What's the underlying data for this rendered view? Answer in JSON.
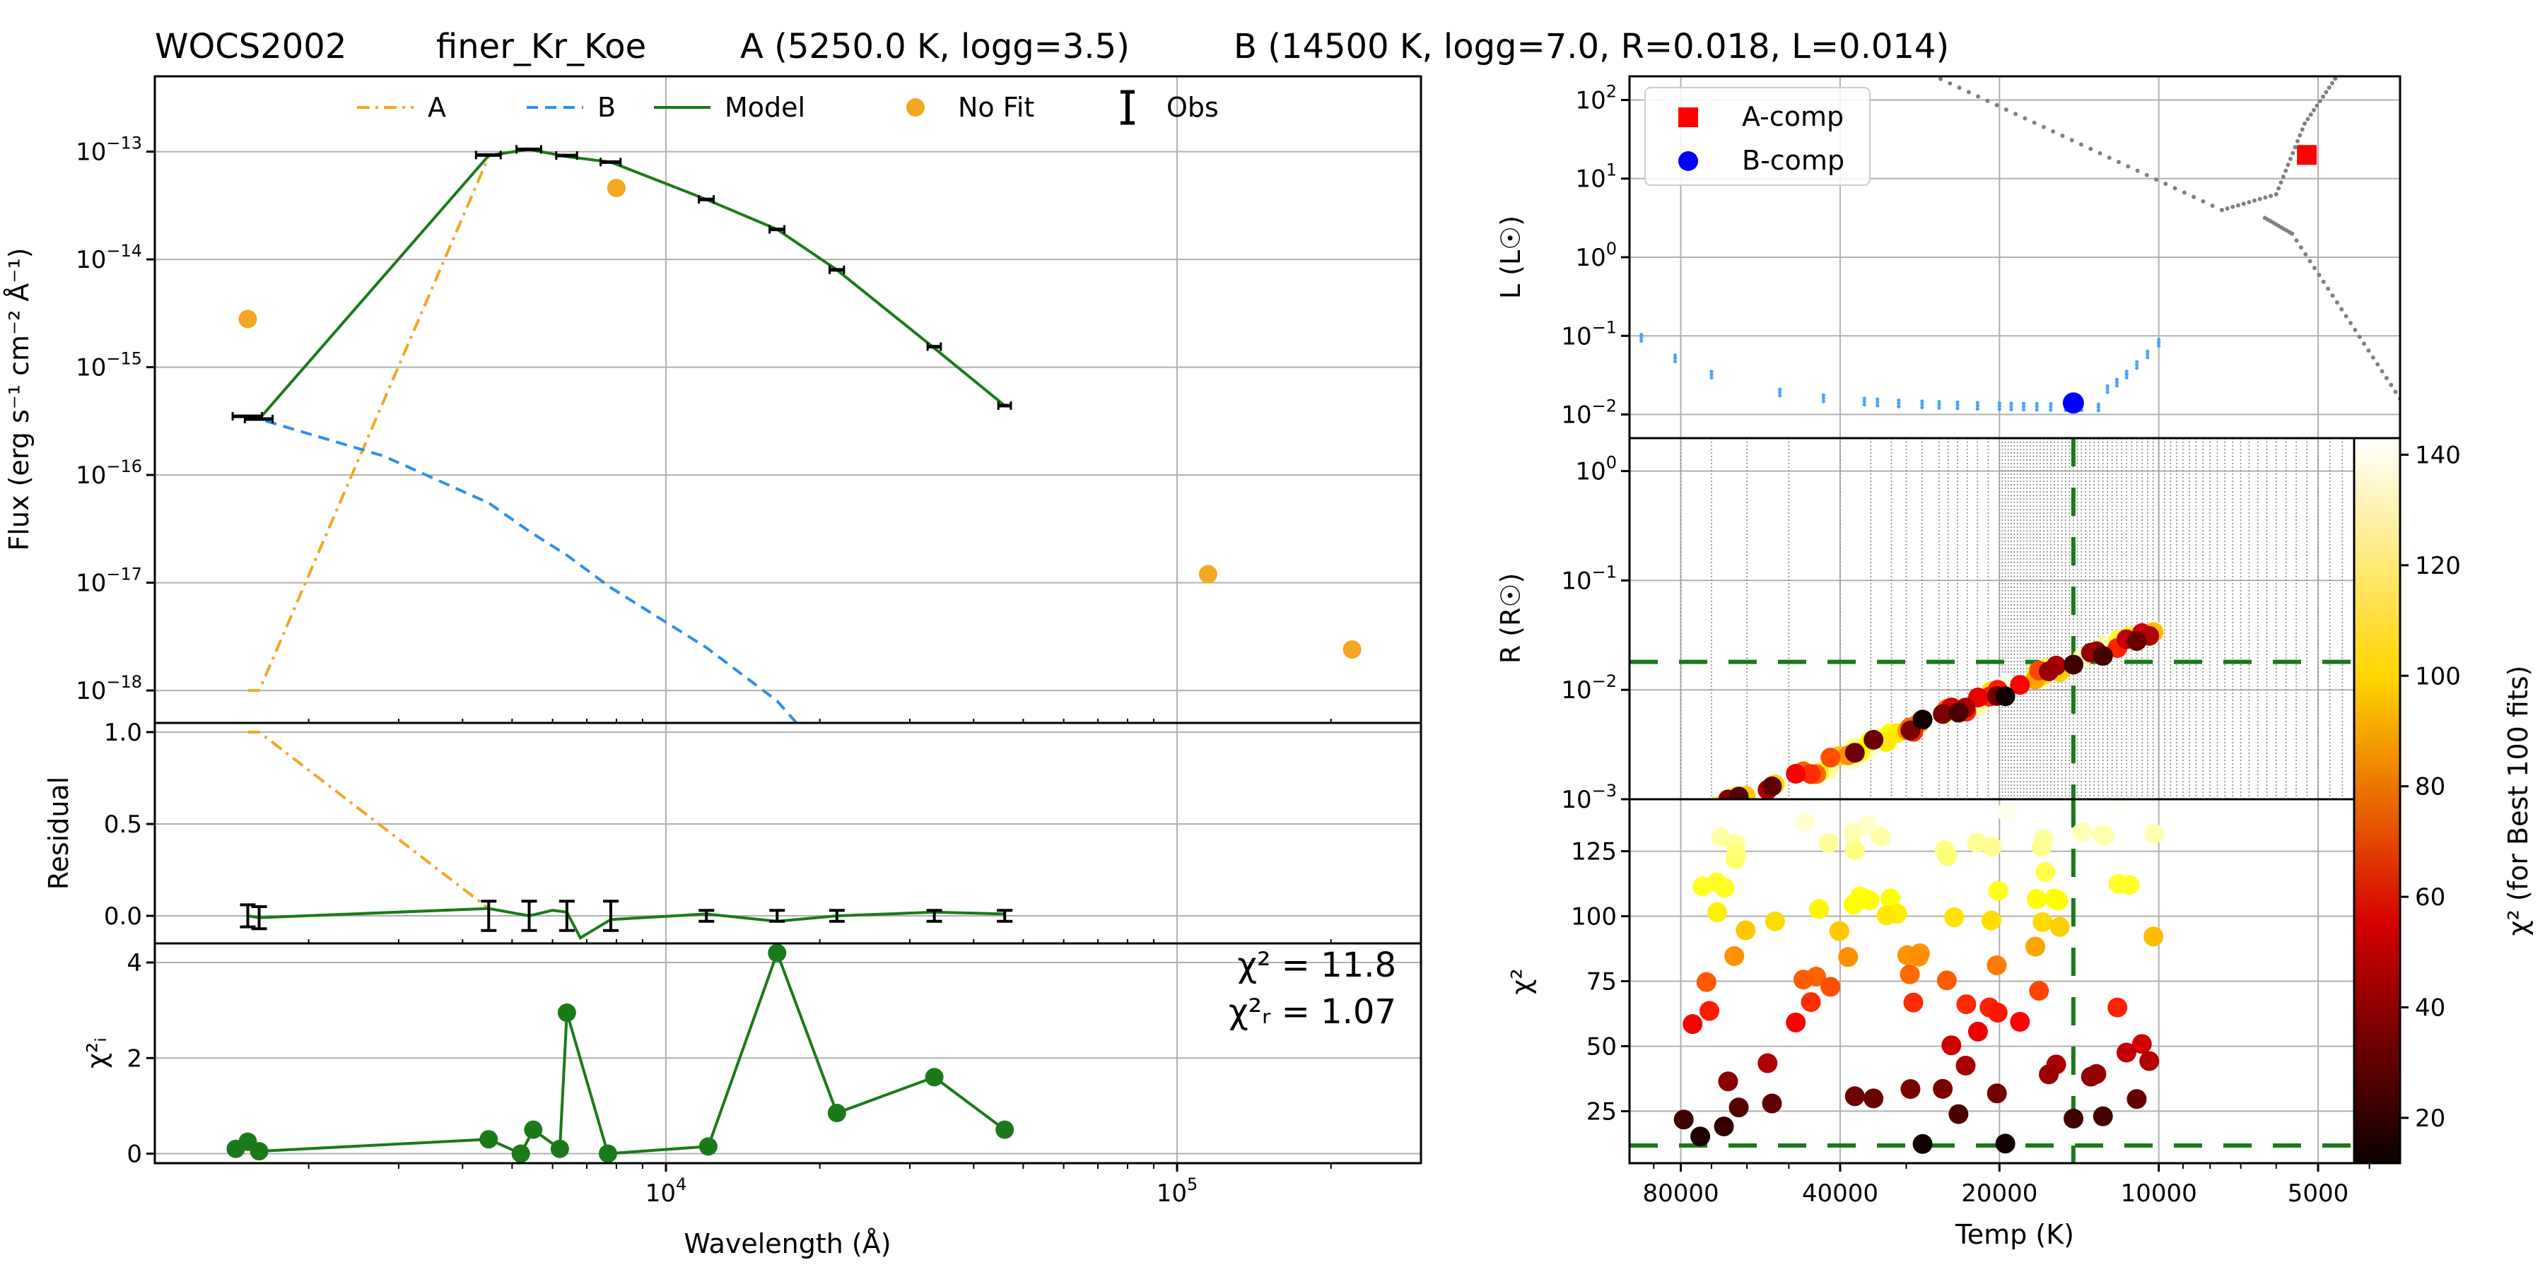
{
  "header": {
    "star": "WOCS2002",
    "model_name": "finer_Kr_Koe",
    "comp_a": "A (5250.0 K, logg=3.5)",
    "comp_b": "B (14500 K, logg=7.0, R=0.018, L=0.014)"
  },
  "colors": {
    "model": "#1a7a1a",
    "comp_a": "#f5a623",
    "comp_b": "#2e8fe8",
    "nofit": "#f5a623",
    "grid": "#b0b0b0",
    "a_marker": "#ff0000",
    "b_marker": "#0000ff",
    "track": "#808080",
    "wd_track": "#4aa3ff",
    "best_fit": "#1a7a1a"
  },
  "chart_data": [
    {
      "id": "sed",
      "type": "line",
      "xscale": "log",
      "yscale": "log",
      "xlim": [
        1000,
        300000
      ],
      "ylim": [
        5e-19,
        5e-13
      ],
      "ylabel": "Flux (erg s⁻¹ cm⁻² Å⁻¹)",
      "yticks": [
        {
          "v": 1e-13,
          "base": "10",
          "exp": "−13"
        },
        {
          "v": 1e-14,
          "base": "10",
          "exp": "−14"
        },
        {
          "v": 1e-15,
          "base": "10",
          "exp": "−15"
        },
        {
          "v": 1e-16,
          "base": "10",
          "exp": "−16"
        },
        {
          "v": 1e-17,
          "base": "10",
          "exp": "−17"
        },
        {
          "v": 1e-18,
          "base": "10",
          "exp": "−18"
        }
      ],
      "legend": [
        {
          "label": "A",
          "style": "dashdot",
          "color": "#f5a623"
        },
        {
          "label": "B",
          "style": "dashed",
          "color": "#2e8fe8"
        },
        {
          "label": "Model",
          "style": "solid",
          "color": "#1a7a1a"
        },
        {
          "label": "No Fit",
          "style": "dot",
          "color": "#f5a623"
        },
        {
          "label": "Obs",
          "style": "errorbar",
          "color": "#000000"
        }
      ],
      "series": [
        {
          "name": "A",
          "style": "dashdot",
          "color": "#f5a623",
          "points": [
            [
              1520,
              1e-18
            ],
            [
              1600,
              1e-18
            ],
            [
              4500,
              9e-14
            ]
          ]
        },
        {
          "name": "B",
          "style": "dashed",
          "color": "#2e8fe8",
          "points": [
            [
              1520,
              3.5e-16
            ],
            [
              1600,
              3.3e-16
            ],
            [
              2800,
              1.5e-16
            ],
            [
              4500,
              5.5e-17
            ],
            [
              5400,
              3e-17
            ],
            [
              6400,
              1.8e-17
            ],
            [
              7800,
              9e-18
            ],
            [
              12000,
              2.5e-18
            ],
            [
              16500,
              8e-19
            ],
            [
              18000,
              5e-19
            ]
          ]
        },
        {
          "name": "Model",
          "style": "solid",
          "color": "#1a7a1a",
          "points": [
            [
              1520,
              3.5e-16
            ],
            [
              1600,
              3.3e-16
            ],
            [
              4500,
              9.2e-14
            ],
            [
              5400,
              1.05e-13
            ],
            [
              6400,
              9e-14
            ],
            [
              7800,
              8e-14
            ],
            [
              12000,
              3.6e-14
            ],
            [
              16500,
              1.9e-14
            ],
            [
              21600,
              8e-15
            ],
            [
              33500,
              1.5e-15
            ],
            [
              46000,
              4.4e-16
            ]
          ]
        }
      ],
      "observations": [
        {
          "x": 1520,
          "y": 3.5e-16,
          "xerr": 100
        },
        {
          "x": 1600,
          "y": 3.3e-16,
          "xerr": 100
        },
        {
          "x": 4500,
          "y": 9.3e-14,
          "xerr": 250
        },
        {
          "x": 5400,
          "y": 1.05e-13,
          "xerr": 300
        },
        {
          "x": 6400,
          "y": 9.2e-14,
          "xerr": 300
        },
        {
          "x": 7800,
          "y": 8e-14,
          "xerr": 350
        },
        {
          "x": 12000,
          "y": 3.6e-14,
          "xerr": 400
        },
        {
          "x": 16500,
          "y": 1.9e-14,
          "xerr": 550
        },
        {
          "x": 21600,
          "y": 8e-15,
          "xerr": 700
        },
        {
          "x": 33500,
          "y": 1.55e-15,
          "xerr": 1000
        },
        {
          "x": 46000,
          "y": 4.4e-16,
          "xerr": 1300
        }
      ],
      "no_fit": [
        [
          1520,
          2.8e-15
        ],
        [
          8000,
          4.6e-14
        ],
        [
          115000,
          1.2e-17
        ],
        [
          220000,
          2.4e-18
        ]
      ]
    },
    {
      "id": "residual",
      "type": "line",
      "xscale": "log",
      "xlim": [
        1000,
        300000
      ],
      "ylim": [
        -0.15,
        1.05
      ],
      "ylabel": "Residual",
      "yticks": [
        "0.0",
        "0.5",
        "1.0"
      ],
      "series": [
        {
          "name": "A",
          "style": "dashdot",
          "color": "#f5a623",
          "points": [
            [
              1520,
              1.0
            ],
            [
              1600,
              1.0
            ],
            [
              4500,
              0.04
            ]
          ]
        },
        {
          "name": "Model",
          "style": "solid",
          "color": "#1a7a1a",
          "points": [
            [
              1520,
              0.0
            ],
            [
              1600,
              -0.01
            ],
            [
              4500,
              0.04
            ],
            [
              5400,
              0.0
            ],
            [
              6000,
              0.03
            ],
            [
              6400,
              0.02
            ],
            [
              6800,
              -0.12
            ],
            [
              7800,
              -0.02
            ],
            [
              12000,
              0.01
            ],
            [
              16500,
              -0.03
            ],
            [
              21600,
              0.0
            ],
            [
              33500,
              0.02
            ],
            [
              46000,
              0.01
            ]
          ]
        }
      ],
      "observations": [
        {
          "x": 1520,
          "y": 0.0,
          "yerr": 0.06
        },
        {
          "x": 1600,
          "y": -0.01,
          "yerr": 0.06
        },
        {
          "x": 4500,
          "y": 0.0,
          "yerr": 0.08
        },
        {
          "x": 5400,
          "y": 0.0,
          "yerr": 0.08
        },
        {
          "x": 6400,
          "y": 0.0,
          "yerr": 0.08
        },
        {
          "x": 7800,
          "y": 0.0,
          "yerr": 0.08
        },
        {
          "x": 12000,
          "y": 0.0,
          "yerr": 0.03
        },
        {
          "x": 16500,
          "y": 0.0,
          "yerr": 0.03
        },
        {
          "x": 21600,
          "y": 0.0,
          "yerr": 0.03
        },
        {
          "x": 33500,
          "y": 0.0,
          "yerr": 0.03
        },
        {
          "x": 46000,
          "y": 0.0,
          "yerr": 0.03
        }
      ]
    },
    {
      "id": "chi2_sed",
      "type": "line",
      "xscale": "log",
      "xlim": [
        1000,
        300000
      ],
      "ylim": [
        -0.2,
        4.4
      ],
      "xlabel": "Wavelength (Å)",
      "ylabel": "χ²ᵢ",
      "xticks": [
        {
          "v": 10000,
          "base": "10",
          "exp": "4"
        },
        {
          "v": 100000,
          "base": "10",
          "exp": "5"
        }
      ],
      "yticks": [
        "0",
        "2",
        "4"
      ],
      "annotation_chi2": "χ² = 11.8",
      "annotation_chi2r": "χ²ᵣ = 1.07",
      "series": [
        {
          "name": "χ²ᵢ",
          "color": "#1a7a1a",
          "points": [
            [
              1440,
              0.1
            ],
            [
              1520,
              0.25
            ],
            [
              1600,
              0.05
            ],
            [
              4500,
              0.3
            ],
            [
              5200,
              0.0
            ],
            [
              5500,
              0.5
            ],
            [
              6200,
              0.1
            ],
            [
              6400,
              2.95
            ],
            [
              7700,
              0.0
            ],
            [
              12100,
              0.15
            ],
            [
              16500,
              4.2
            ],
            [
              21600,
              0.85
            ],
            [
              33500,
              1.6
            ],
            [
              46000,
              0.5
            ]
          ]
        }
      ]
    },
    {
      "id": "hrd",
      "type": "scatter",
      "xscale": "log",
      "xreverse": true,
      "yscale": "log",
      "xlim": [
        100000,
        3500
      ],
      "ylim": [
        0.005,
        200
      ],
      "ylabel": "L (L☉)",
      "yticks": [
        {
          "v": 100,
          "base": "10",
          "exp": "2"
        },
        {
          "v": 10,
          "base": "10",
          "exp": "1"
        },
        {
          "v": 1,
          "base": "10",
          "exp": "0"
        },
        {
          "v": 0.1,
          "base": "10",
          "exp": "−1"
        },
        {
          "v": 0.01,
          "base": "10",
          "exp": "−2"
        }
      ],
      "legend": [
        {
          "label": "A-comp",
          "color": "#ff0000",
          "marker": "square"
        },
        {
          "label": "B-comp",
          "color": "#0000ff",
          "marker": "circle"
        }
      ],
      "a_comp": {
        "T": 5250,
        "L": 20
      },
      "b_comp": {
        "T": 14500,
        "L": 0.014
      }
    },
    {
      "id": "radius",
      "type": "scatter",
      "xscale": "log",
      "xreverse": true,
      "yscale": "log",
      "xlim": [
        100000,
        3500
      ],
      "ylim": [
        0.001,
        2
      ],
      "ylabel": "R (R☉)",
      "yticks": [
        {
          "v": 1,
          "base": "10",
          "exp": "0"
        },
        {
          "v": 0.1,
          "base": "10",
          "exp": "−1"
        },
        {
          "v": 0.01,
          "base": "10",
          "exp": "−2"
        },
        {
          "v": 0.001,
          "base": "10",
          "exp": "−3"
        }
      ],
      "best_T": 14500,
      "best_R": 0.018
    },
    {
      "id": "chi2_temp",
      "type": "scatter",
      "xscale": "log",
      "xreverse": true,
      "xlim": [
        100000,
        3500
      ],
      "ylim": [
        5,
        145
      ],
      "xlabel": "Temp (K)",
      "ylabel": "χ²",
      "xticks": [
        "80000",
        "40000",
        "20000",
        "10000",
        "5000"
      ],
      "yticks": [
        "25",
        "50",
        "75",
        "100",
        "125"
      ],
      "best_T": 14500,
      "best_chi2": 11.8
    },
    {
      "id": "colorbar",
      "type": "heatmap",
      "label": "χ²  (for Best 100 fits)",
      "range": [
        11.8,
        143
      ],
      "ticks": [
        "20",
        "40",
        "60",
        "80",
        "100",
        "120",
        "140"
      ]
    }
  ]
}
